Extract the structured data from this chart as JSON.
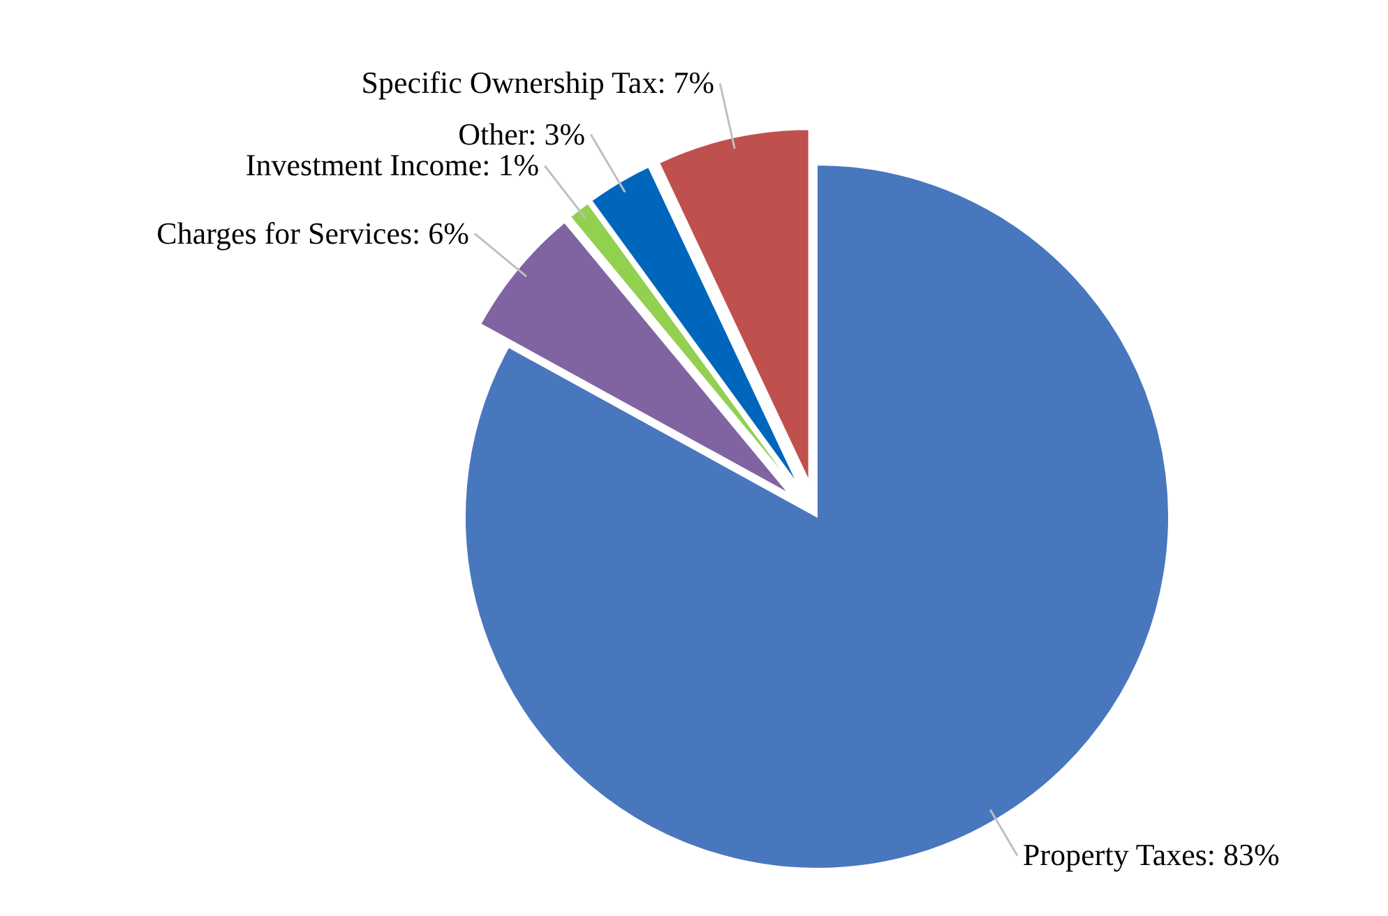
{
  "chart_data": {
    "type": "pie",
    "categories": [
      "Property Taxes",
      "Charges for Services",
      "Investment Income",
      "Other",
      "Specific Ownership Tax"
    ],
    "values": [
      83,
      6,
      1,
      3,
      7
    ],
    "colors": [
      "#4877be",
      "#8064a2",
      "#92d050",
      "#0066bb",
      "#c0504d"
    ],
    "value_labels": [
      "83%",
      "6%",
      "1%",
      "3%",
      "7%"
    ]
  }
}
